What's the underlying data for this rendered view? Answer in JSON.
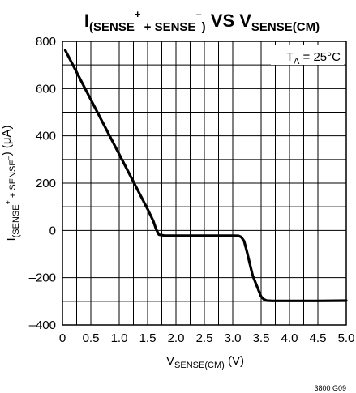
{
  "chart_data": {
    "type": "line",
    "title": {
      "main": "I",
      "sub": "(SENSE",
      "sup1": "+",
      "mid": " + SENSE",
      "sup2": "–",
      "close": ")",
      "vs": " VS V",
      "vs_sub": "SENSE(CM)"
    },
    "xlabel": {
      "main": "V",
      "sub": "SENSE(CM)",
      "unit": " (V)"
    },
    "ylabel": {
      "main": "I",
      "sub": "(SENSE",
      "sup1": "+",
      "mid": " + SENSE",
      "sup2": "–",
      "unit": ") (μA)"
    },
    "annotation": {
      "main": "T",
      "sub": "A",
      "rest": " = 25°C"
    },
    "figure_id": "3800 G09",
    "xlim": [
      0,
      5.0
    ],
    "ylim": [
      -400,
      800
    ],
    "x_ticks": [
      0,
      0.5,
      1.0,
      1.5,
      2.0,
      2.5,
      3.0,
      3.5,
      4.0,
      4.5,
      5.0
    ],
    "x_tick_labels": [
      "0",
      "0.5",
      "1.0",
      "1.5",
      "2.0",
      "2.5",
      "3.0",
      "3.5",
      "4.0",
      "4.5",
      "5.0"
    ],
    "x_grid": [
      0.25,
      0.5,
      0.75,
      1.0,
      1.25,
      1.5,
      1.75,
      2.0,
      2.25,
      2.5,
      2.75,
      3.0,
      3.25,
      3.5,
      3.75,
      4.0,
      4.25,
      4.5,
      4.75
    ],
    "y_ticks": [
      -400,
      -200,
      0,
      200,
      400,
      600,
      800
    ],
    "y_tick_labels": [
      "–400",
      "–200",
      "0",
      "200",
      "400",
      "600",
      "800"
    ],
    "y_grid": [
      -300,
      -200,
      -100,
      0,
      100,
      200,
      300,
      400,
      500,
      600,
      700
    ],
    "grid": true,
    "series": [
      {
        "x": [
          0.05,
          0.5,
          1.0,
          1.5,
          1.6,
          1.65,
          1.7,
          1.8,
          2.5,
          3.0,
          3.1,
          3.15,
          3.2,
          3.25,
          3.35,
          3.5,
          3.55,
          3.6,
          3.7,
          4.0,
          4.5,
          5.0
        ],
        "y": [
          762,
          553,
          322,
          90,
          40,
          5,
          -18,
          -22,
          -22,
          -22,
          -23,
          -28,
          -45,
          -90,
          -190,
          -280,
          -292,
          -297,
          -298,
          -298,
          -298,
          -297
        ]
      }
    ]
  }
}
